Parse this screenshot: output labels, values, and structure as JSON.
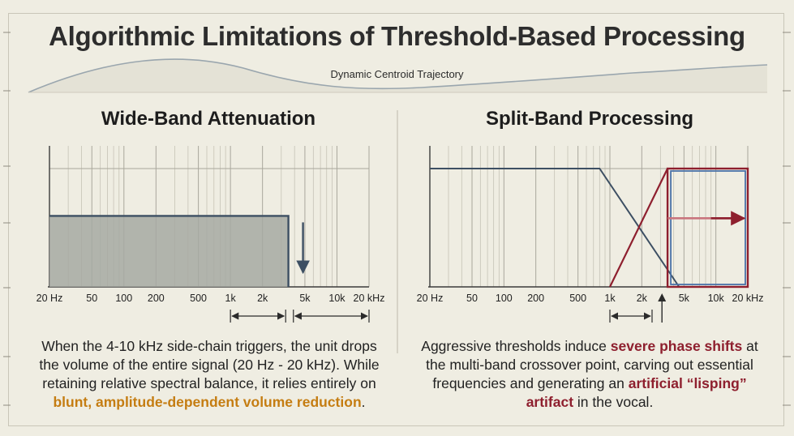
{
  "title": "Algorithmic Limitations of Threshold-Based Processing",
  "trajectory_label": "Dynamic Centroid Trajectory",
  "colors": {
    "background": "#efede2",
    "gray_fill": "#a6a9a2",
    "navy": "#3d4f63",
    "crimson": "#8e1f2e",
    "blue": "#4a72a8",
    "amber": "#c57d12",
    "salmon": "#c9757e"
  },
  "left_panel": {
    "title": "Wide-Band Attenuation",
    "freq_labels": [
      "20 Hz",
      "50",
      "100",
      "200",
      "500",
      "1k",
      "2k",
      "5k",
      "10k",
      "20 kHz"
    ],
    "caption_plain": "When the 4-10 kHz side-chain triggers, the unit drops the volume of the entire signal (20 Hz - 20 kHz). While retaining relative spectral balance, it relies entirely on",
    "caption_highlight": "blunt, amplitude-dependent volume reduction",
    "caption_end": "."
  },
  "right_panel": {
    "title": "Split-Band Processing",
    "freq_labels": [
      "20 Hz",
      "50",
      "100",
      "200",
      "500",
      "1k",
      "2k",
      "5k",
      "10k",
      "20 kHz"
    ],
    "caption_part1": "Aggressive thresholds induce",
    "caption_highlight1": "severe phase shifts",
    "caption_part2": "at the multi-band crossover point, carving out essential frequencies and generating an",
    "caption_highlight2": "artificial “lisping” artifact",
    "caption_part3": "in the vocal."
  },
  "chart_data": [
    {
      "type": "area",
      "title": "Wide-Band Attenuation",
      "x_scale": "log",
      "x_ticks": [
        20,
        50,
        100,
        200,
        500,
        1000,
        2000,
        5000,
        10000,
        20000
      ],
      "x_tick_labels": [
        "20 Hz",
        "50",
        "100",
        "200",
        "500",
        "1k",
        "2k",
        "5k",
        "10k",
        "20 kHz"
      ],
      "series": [
        {
          "x": [
            20,
            3500
          ],
          "y": [
            0.6,
            0.6
          ]
        }
      ],
      "annotations": [
        "down-arrow",
        "range-arrow-1k-3.5k",
        "range-arrow-4k-20k"
      ]
    },
    {
      "type": "line",
      "title": "Split-Band Processing",
      "x_scale": "log",
      "x_ticks": [
        20,
        50,
        100,
        200,
        500,
        1000,
        2000,
        5000,
        10000,
        20000
      ],
      "x_tick_labels": [
        "20 Hz",
        "50",
        "100",
        "200",
        "500",
        "1k",
        "2k",
        "5k",
        "10k",
        "20 kHz"
      ],
      "series": [
        {
          "x": [
            20,
            800,
            4500
          ],
          "y": [
            1.0,
            1.0,
            0.0
          ]
        },
        {
          "x": [
            1000,
            3500,
            20000
          ],
          "y": [
            0.0,
            1.0,
            1.0
          ]
        }
      ],
      "annotations": [
        "right-arrow",
        "range-arrow-1k-2.5k",
        "up-arrow-3k"
      ]
    }
  ]
}
